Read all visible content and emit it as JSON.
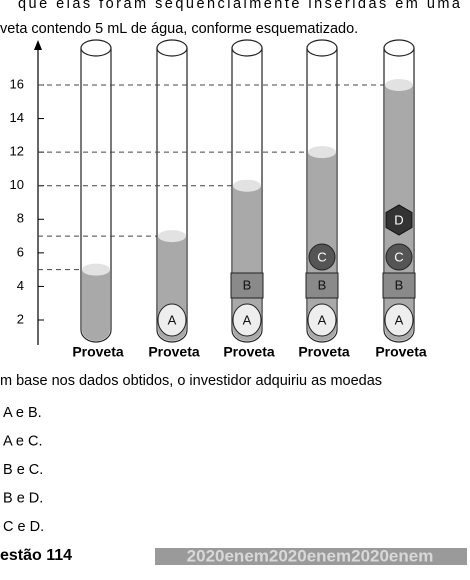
{
  "text_lines": [
    "que elas foram sequencialmente inseridas em uma",
    "veta contendo 5 mL de água, conforme esquematizado."
  ],
  "diagram": {
    "yticks": [
      2,
      4,
      6,
      8,
      10,
      12,
      14,
      16
    ],
    "tubes": [
      {
        "label": "Proveta",
        "level": 5,
        "objects": []
      },
      {
        "label": "Proveta",
        "level": 7,
        "objects": [
          "A"
        ]
      },
      {
        "label": "Proveta",
        "level": 10,
        "objects": [
          "A",
          "B"
        ]
      },
      {
        "label": "Proveta",
        "level": 12,
        "objects": [
          "A",
          "B",
          "C"
        ]
      },
      {
        "label": "Proveta",
        "level": 16,
        "objects": [
          "A",
          "B",
          "C",
          "D"
        ]
      }
    ]
  },
  "question": "m base nos dados obtidos, o investidor adquiriu as moedas",
  "options": [
    "A e B.",
    "A e C.",
    "B e C.",
    "B e D.",
    "C e D."
  ],
  "next_question": "estão 114",
  "watermark": "2020enem2020enem2020enem"
}
